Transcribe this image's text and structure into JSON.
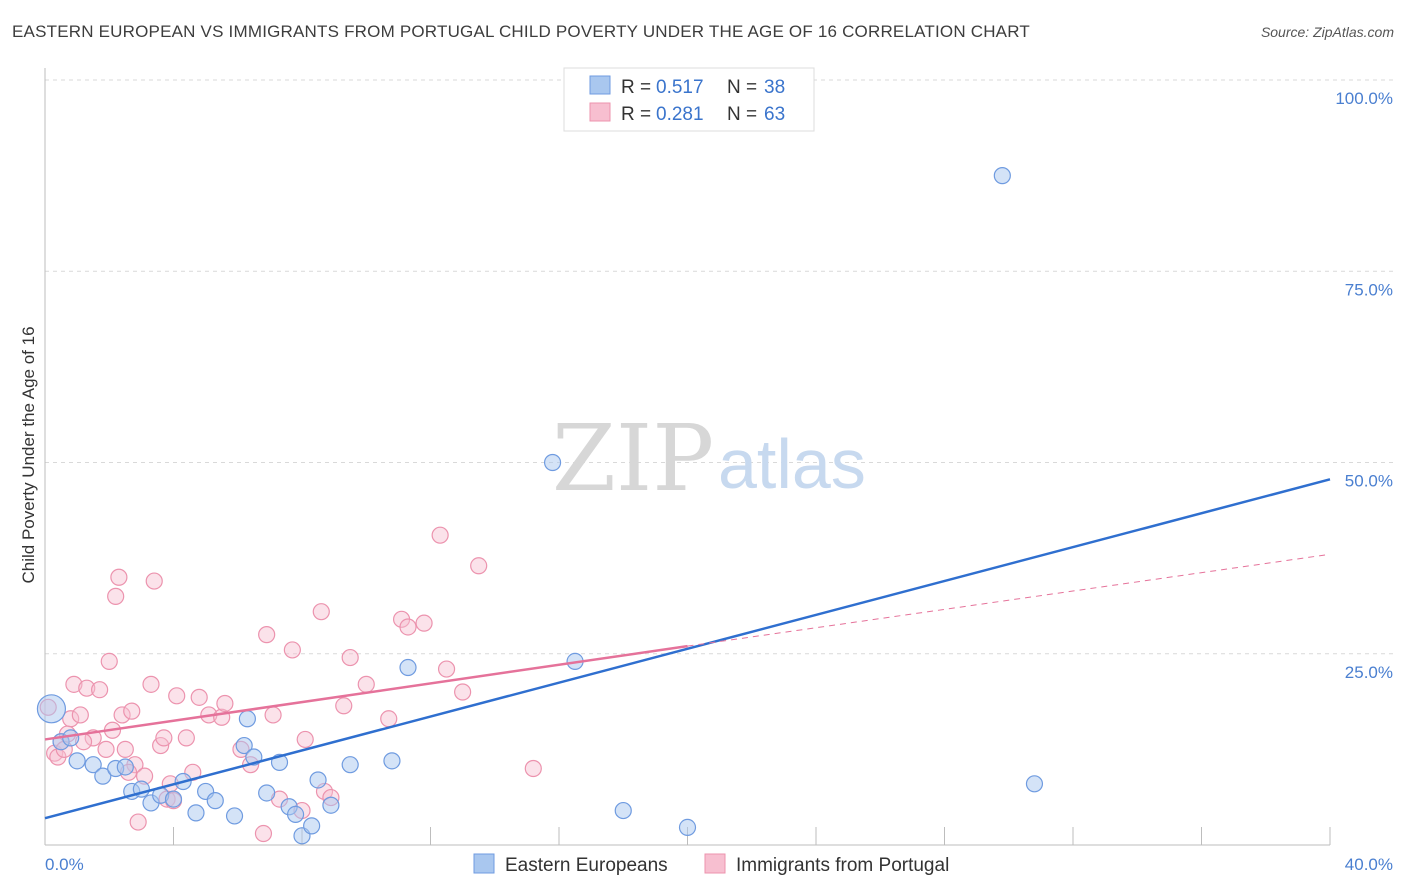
{
  "title": "EASTERN EUROPEAN VS IMMIGRANTS FROM PORTUGAL CHILD POVERTY UNDER THE AGE OF 16 CORRELATION CHART",
  "source": "Source: ZipAtlas.com",
  "watermark": {
    "zip": "ZIP",
    "atlas": "atlas"
  },
  "colors": {
    "blue_fill": "#a9c7ef",
    "blue_stroke": "#6f9be0",
    "blue_line": "#2f6fcf",
    "pink_fill": "#f7bfd0",
    "pink_stroke": "#ec93ae",
    "pink_line": "#e5729a",
    "tick_text": "#4a7fd0",
    "grid": "#d9d9d9"
  },
  "legend": {
    "rows": [
      {
        "r_label": "R = ",
        "r_value": "0.517",
        "n_label": "N = ",
        "n_value": "38",
        "series": "blue"
      },
      {
        "r_label": "R = ",
        "r_value": "0.281",
        "n_label": "N = ",
        "n_value": "63",
        "series": "pink"
      }
    ]
  },
  "chart_data": {
    "type": "scatter",
    "title": "EASTERN EUROPEAN VS IMMIGRANTS FROM PORTUGAL CHILD POVERTY UNDER THE AGE OF 16 CORRELATION CHART",
    "xlabel": "",
    "ylabel": "Child Poverty Under the Age of 16",
    "xlim": [
      0,
      40
    ],
    "ylim": [
      0,
      100
    ],
    "x_tick_labels": [
      "0.0%",
      "40.0%"
    ],
    "y_tick_labels": [
      "25.0%",
      "50.0%",
      "75.0%",
      "100.0%"
    ],
    "y_ticks": [
      25,
      50,
      75,
      100
    ],
    "grid": true,
    "legend_position": "top-center",
    "series": [
      {
        "name": "Eastern Europeans",
        "color": "blue",
        "r": 0.517,
        "n": 38,
        "trend": {
          "x": [
            0,
            40
          ],
          "y": [
            3.5,
            47.8
          ],
          "style": "solid"
        },
        "points": [
          [
            0.2,
            17.8
          ],
          [
            0.5,
            13.5
          ],
          [
            0.8,
            14.0
          ],
          [
            1.0,
            11.0
          ],
          [
            1.5,
            10.5
          ],
          [
            1.8,
            9.0
          ],
          [
            2.2,
            10.0
          ],
          [
            2.5,
            10.2
          ],
          [
            2.7,
            7.0
          ],
          [
            3.0,
            7.3
          ],
          [
            3.3,
            5.5
          ],
          [
            3.6,
            6.5
          ],
          [
            4.0,
            6.0
          ],
          [
            4.3,
            8.3
          ],
          [
            4.7,
            4.2
          ],
          [
            5.0,
            7.0
          ],
          [
            5.3,
            5.8
          ],
          [
            5.9,
            3.8
          ],
          [
            6.2,
            13.0
          ],
          [
            6.3,
            16.5
          ],
          [
            6.5,
            11.5
          ],
          [
            6.9,
            6.8
          ],
          [
            7.3,
            10.8
          ],
          [
            7.6,
            5.0
          ],
          [
            7.8,
            4.0
          ],
          [
            8.0,
            1.2
          ],
          [
            8.3,
            2.5
          ],
          [
            8.5,
            8.5
          ],
          [
            8.9,
            5.2
          ],
          [
            9.5,
            10.5
          ],
          [
            10.8,
            11.0
          ],
          [
            11.3,
            23.2
          ],
          [
            15.8,
            50.0
          ],
          [
            16.5,
            24.0
          ],
          [
            20.0,
            2.3
          ],
          [
            18.0,
            4.5
          ],
          [
            29.8,
            87.5
          ],
          [
            30.8,
            8.0
          ]
        ]
      },
      {
        "name": "Immigrants from Portugal",
        "color": "pink",
        "r": 0.281,
        "n": 63,
        "trend": {
          "x": [
            0,
            20,
            40
          ],
          "y": [
            13.8,
            26.0,
            38.0
          ],
          "style": "solid-then-dashed",
          "solid_until": 20
        },
        "points": [
          [
            0.1,
            18.0
          ],
          [
            0.3,
            12.0
          ],
          [
            0.4,
            11.5
          ],
          [
            0.5,
            13.5
          ],
          [
            0.6,
            12.5
          ],
          [
            0.8,
            16.5
          ],
          [
            0.9,
            21.0
          ],
          [
            1.1,
            17.0
          ],
          [
            1.3,
            20.5
          ],
          [
            1.5,
            14.0
          ],
          [
            1.7,
            20.3
          ],
          [
            1.9,
            12.5
          ],
          [
            2.0,
            24.0
          ],
          [
            2.1,
            15.0
          ],
          [
            2.2,
            32.5
          ],
          [
            2.3,
            35.0
          ],
          [
            2.4,
            17.0
          ],
          [
            2.5,
            12.5
          ],
          [
            2.7,
            17.5
          ],
          [
            2.8,
            10.5
          ],
          [
            2.9,
            3.0
          ],
          [
            3.1,
            9.0
          ],
          [
            3.3,
            21.0
          ],
          [
            3.4,
            34.5
          ],
          [
            3.6,
            13.0
          ],
          [
            3.7,
            14.0
          ],
          [
            3.8,
            6.0
          ],
          [
            3.9,
            8.0
          ],
          [
            4.1,
            19.5
          ],
          [
            4.4,
            14.0
          ],
          [
            4.6,
            9.5
          ],
          [
            4.8,
            19.3
          ],
          [
            5.1,
            17.0
          ],
          [
            5.5,
            16.7
          ],
          [
            5.6,
            18.5
          ],
          [
            6.1,
            12.5
          ],
          [
            6.4,
            10.5
          ],
          [
            6.8,
            1.5
          ],
          [
            6.9,
            27.5
          ],
          [
            7.1,
            17.0
          ],
          [
            7.3,
            6.0
          ],
          [
            7.7,
            25.5
          ],
          [
            8.0,
            4.5
          ],
          [
            8.1,
            13.8
          ],
          [
            8.6,
            30.5
          ],
          [
            8.7,
            7.0
          ],
          [
            8.9,
            6.2
          ],
          [
            9.3,
            18.2
          ],
          [
            9.5,
            24.5
          ],
          [
            10.0,
            21.0
          ],
          [
            10.7,
            16.5
          ],
          [
            11.1,
            29.5
          ],
          [
            11.3,
            28.5
          ],
          [
            11.8,
            29.0
          ],
          [
            12.3,
            40.5
          ],
          [
            12.5,
            23.0
          ],
          [
            13.0,
            20.0
          ],
          [
            13.5,
            36.5
          ],
          [
            15.2,
            10.0
          ],
          [
            4.0,
            5.8
          ],
          [
            1.2,
            13.5
          ],
          [
            0.7,
            14.5
          ],
          [
            2.6,
            9.5
          ]
        ]
      }
    ]
  },
  "bottom_legend": {
    "items": [
      {
        "label": "Eastern Europeans",
        "series": "blue"
      },
      {
        "label": "Immigrants from Portugal",
        "series": "pink"
      }
    ]
  }
}
